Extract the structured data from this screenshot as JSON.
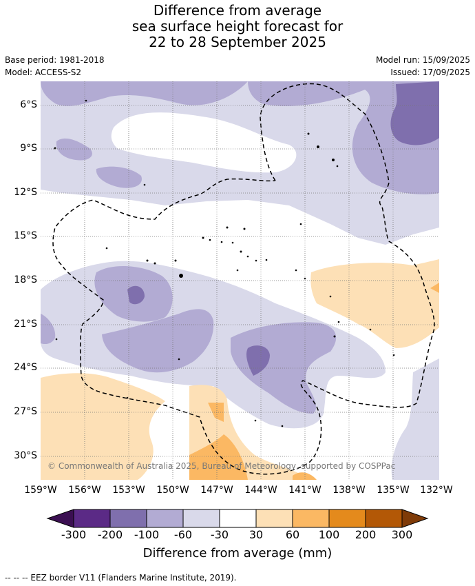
{
  "title": {
    "line1": "Difference from average",
    "line2": "sea surface height forecast for",
    "line3": "22 to 28 September 2025"
  },
  "meta": {
    "base_period": "Base period: 1981-2018",
    "model": "Model: ACCESS-S2",
    "model_run": "Model run: 15/09/2025",
    "issued": "Issued: 17/09/2025"
  },
  "axes": {
    "lat_labels": [
      "6°S",
      "9°S",
      "12°S",
      "15°S",
      "18°S",
      "21°S",
      "24°S",
      "27°S",
      "30°S"
    ],
    "lon_labels": [
      "159°W",
      "156°W",
      "153°W",
      "150°W",
      "147°W",
      "144°W",
      "141°W",
      "138°W",
      "135°W",
      "132°W"
    ]
  },
  "copyright": "© Commonwealth of Australia 2025, Bureau of Meteorology, supported by COSPPac",
  "colorbar": {
    "title": "Difference from average (mm)",
    "labels": [
      "-300",
      "-200",
      "-100",
      "-60",
      "-30",
      "30",
      "60",
      "100",
      "200",
      "300"
    ],
    "colors": {
      "below_min": "#3b0f52",
      "n300_200": "#5b2a86",
      "n200_100": "#7f6fad",
      "n100_60": "#b2abd3",
      "n60_30": "#d9d9ea",
      "n30_30": "#ffffff",
      "p30_60": "#fde0b6",
      "p60_100": "#fbb863",
      "p100_200": "#e48a1c",
      "p200_300": "#b35806",
      "above_max": "#7f3b08"
    }
  },
  "footer": "-- -- -- EEZ border V11 (Flanders Marine Institute, 2019)."
}
